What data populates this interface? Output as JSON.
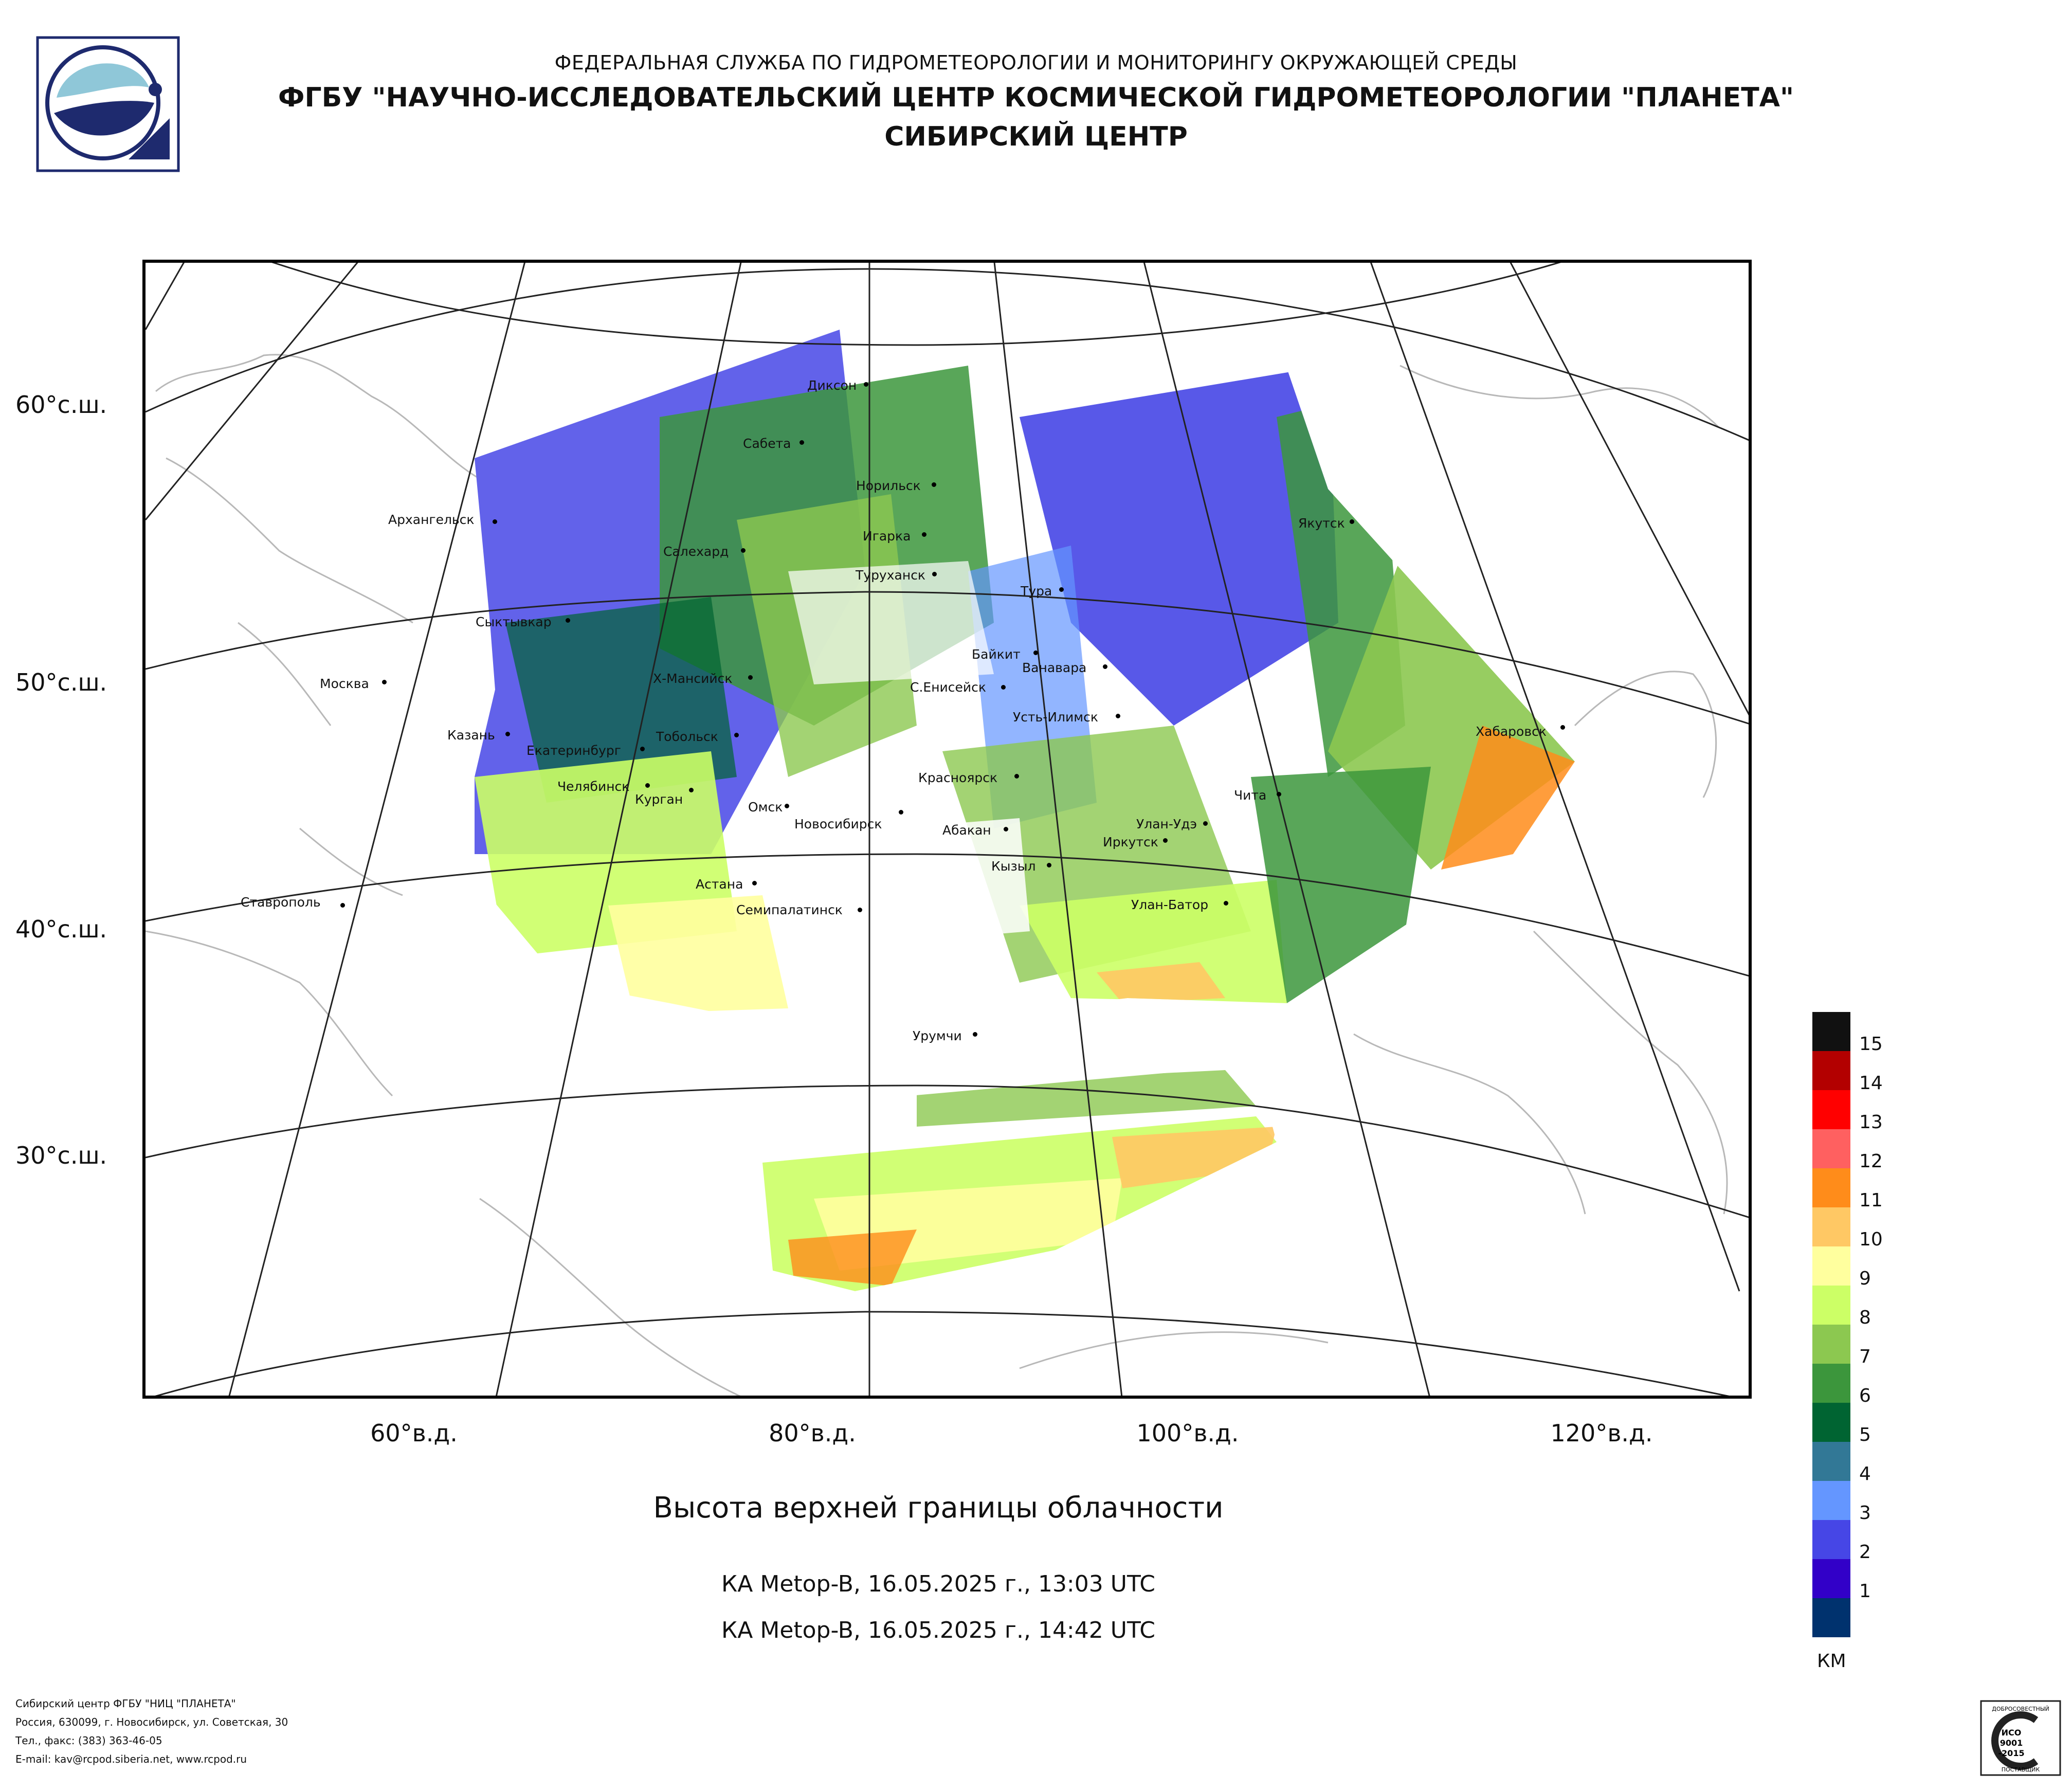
{
  "header": {
    "agency": "ФЕДЕРАЛЬНАЯ СЛУЖБА ПО ГИДРОМЕТЕОРОЛОГИИ И МОНИТОРИНГУ ОКРУЖАЮЩЕЙ СРЕДЫ",
    "center": "ФГБУ \"НАУЧНО-ИССЛЕДОВАТЕЛЬСКИЙ ЦЕНТР КОСМИЧЕСКОЙ ГИДРОМЕТЕОРОЛОГИИ \"ПЛАНЕТА\"",
    "branch": "СИБИРСКИЙ ЦЕНТР"
  },
  "lat_labels": [
    "60°с.ш.",
    "50°с.ш.",
    "40°с.ш.",
    "30°с.ш."
  ],
  "lon_labels": [
    "60°в.д.",
    "80°в.д.",
    "100°в.д.",
    "120°в.д."
  ],
  "cities": [
    {
      "name": "Диксон"
    },
    {
      "name": "Сабета"
    },
    {
      "name": "Норильск"
    },
    {
      "name": "Архангельск"
    },
    {
      "name": "Игарка"
    },
    {
      "name": "Салехард"
    },
    {
      "name": "Туруханск"
    },
    {
      "name": "Тура"
    },
    {
      "name": "Якутск"
    },
    {
      "name": "Сыктывкар"
    },
    {
      "name": "Байкит"
    },
    {
      "name": "Ванавара"
    },
    {
      "name": "Москва"
    },
    {
      "name": "Х-Мансийск"
    },
    {
      "name": "С.Енисейск"
    },
    {
      "name": "Усть-Илимск"
    },
    {
      "name": "Хабаровск"
    },
    {
      "name": "Казань"
    },
    {
      "name": "Тобольск"
    },
    {
      "name": "Екатеринбург"
    },
    {
      "name": "Красноярск"
    },
    {
      "name": "Челябинск"
    },
    {
      "name": "Курган"
    },
    {
      "name": "Омск"
    },
    {
      "name": "Чита"
    },
    {
      "name": "Новосибирск"
    },
    {
      "name": "Улан-Удэ"
    },
    {
      "name": "Абакан"
    },
    {
      "name": "Иркутск"
    },
    {
      "name": "Кызыл"
    },
    {
      "name": "Астана"
    },
    {
      "name": "Ставрополь"
    },
    {
      "name": "Семипалатинск"
    },
    {
      "name": "Улан-Батор"
    },
    {
      "name": "Урумчи"
    }
  ],
  "title": "Высота верхней границы облачности",
  "passes": [
    "КА Metop-B, 16.05.2025 г., 13:03 UTC",
    "КА Metop-B, 16.05.2025 г., 14:42 UTC"
  ],
  "legend": {
    "unit": "КМ",
    "items": [
      {
        "label": "15",
        "color": "#111111"
      },
      {
        "label": "14",
        "color": "#b30000"
      },
      {
        "label": "13",
        "color": "#ff0000"
      },
      {
        "label": "12",
        "color": "#ff6060"
      },
      {
        "label": "11",
        "color": "#ff8c1a"
      },
      {
        "label": "10",
        "color": "#ffc864"
      },
      {
        "label": "9",
        "color": "#ffff9e"
      },
      {
        "label": "8",
        "color": "#ccff66"
      },
      {
        "label": "7",
        "color": "#8cc850"
      },
      {
        "label": "6",
        "color": "#3c963c"
      },
      {
        "label": "5",
        "color": "#006432"
      },
      {
        "label": "4",
        "color": "#327896"
      },
      {
        "label": "3",
        "color": "#6496ff"
      },
      {
        "label": "2",
        "color": "#4646e6"
      },
      {
        "label": "1",
        "color": "#3200c8"
      },
      {
        "label": "",
        "color": "#00326e"
      }
    ]
  },
  "footer": [
    "Сибирский центр ФГБУ \"НИЦ \"ПЛАНЕТА\"",
    "Россия, 630099, г. Новосибирск, ул. Советская, 30",
    "Тел., факс: (383) 363-46-05",
    "E-mail: kav@rcpod.siberia.net, www.rcpod.ru"
  ],
  "certificate": {
    "text1": "ДОБРОСОВЕСТНЫЙ",
    "text2": "ИСО",
    "text3": "9001",
    "text4": "-2015",
    "text5": "ПОСТАВЩИК"
  }
}
